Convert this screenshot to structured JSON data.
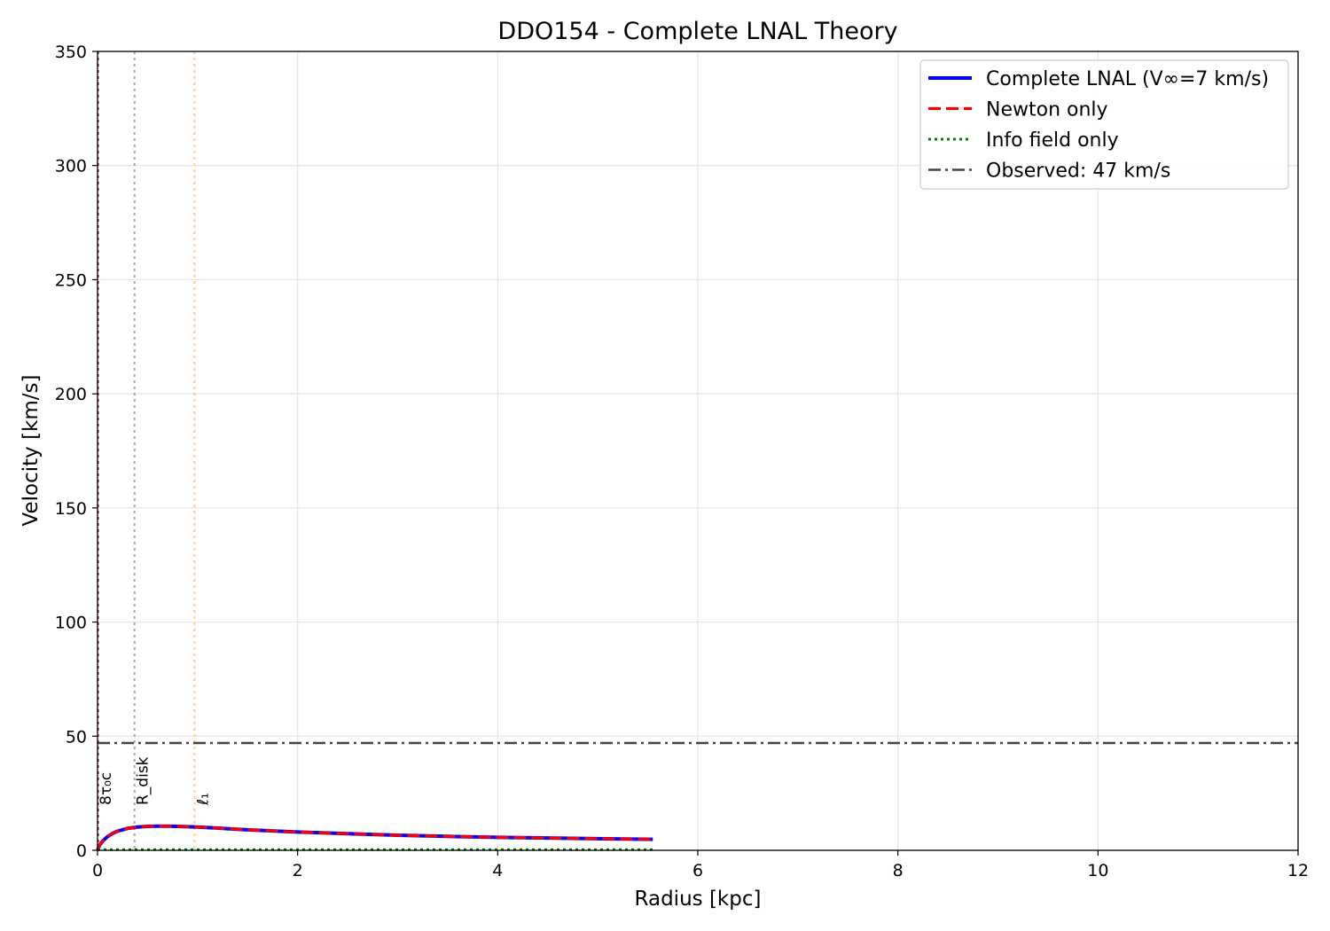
{
  "chart_data": {
    "type": "line",
    "title": "DDO154 - Complete LNAL Theory",
    "xlabel": "Radius [kpc]",
    "ylabel": "Velocity [km/s]",
    "xlim": [
      0,
      12
    ],
    "ylim": [
      0,
      350
    ],
    "xticks": [
      0,
      2,
      4,
      6,
      8,
      10,
      12
    ],
    "yticks": [
      0,
      50,
      100,
      150,
      200,
      250,
      300,
      350
    ],
    "grid": true,
    "legend_position": "top-right",
    "x": [
      0.0,
      0.02,
      0.05,
      0.1,
      0.15,
      0.2,
      0.3,
      0.4,
      0.5,
      0.6,
      0.7,
      0.8,
      1.0,
      1.25,
      1.5,
      2.0,
      2.5,
      3.0,
      3.5,
      4.0,
      4.5,
      5.0,
      5.55
    ],
    "series": [
      {
        "name": "Complete LNAL (V∞=7 km/s)",
        "color": "#0000ff",
        "style": "solid",
        "values": [
          0.0,
          2.2,
          4.0,
          6.0,
          7.4,
          8.4,
          9.6,
          10.2,
          10.5,
          10.6,
          10.6,
          10.5,
          10.2,
          9.6,
          9.0,
          8.0,
          7.3,
          6.6,
          6.1,
          5.7,
          5.4,
          5.1,
          4.8
        ]
      },
      {
        "name": "Newton only",
        "color": "#ff0000",
        "style": "dashed",
        "values": [
          0.0,
          2.2,
          4.0,
          6.0,
          7.4,
          8.4,
          9.6,
          10.2,
          10.5,
          10.6,
          10.6,
          10.5,
          10.2,
          9.6,
          9.0,
          8.0,
          7.3,
          6.6,
          6.1,
          5.7,
          5.4,
          5.1,
          4.8
        ]
      },
      {
        "name": "Info field only",
        "color": "#008000",
        "style": "dotted",
        "values": [
          0.3,
          0.3,
          0.3,
          0.3,
          0.3,
          0.3,
          0.3,
          0.3,
          0.3,
          0.3,
          0.3,
          0.3,
          0.3,
          0.3,
          0.3,
          0.3,
          0.3,
          0.3,
          0.3,
          0.3,
          0.3,
          0.3,
          0.3
        ]
      }
    ],
    "hlines": [
      {
        "name": "Observed: 47 km/s",
        "y": 47,
        "color": "#444444",
        "style": "dashdot"
      }
    ],
    "vlines": [
      {
        "label": "8τ₀c",
        "x": 0.0,
        "color": "#8b0000",
        "style": "dotted"
      },
      {
        "label": "R_disk",
        "x": 0.37,
        "color": "#aaaaaa",
        "style": "dotted"
      },
      {
        "label": "ℓ₁",
        "x": 0.97,
        "color": "#ffd27f",
        "style": "dotted"
      }
    ]
  }
}
